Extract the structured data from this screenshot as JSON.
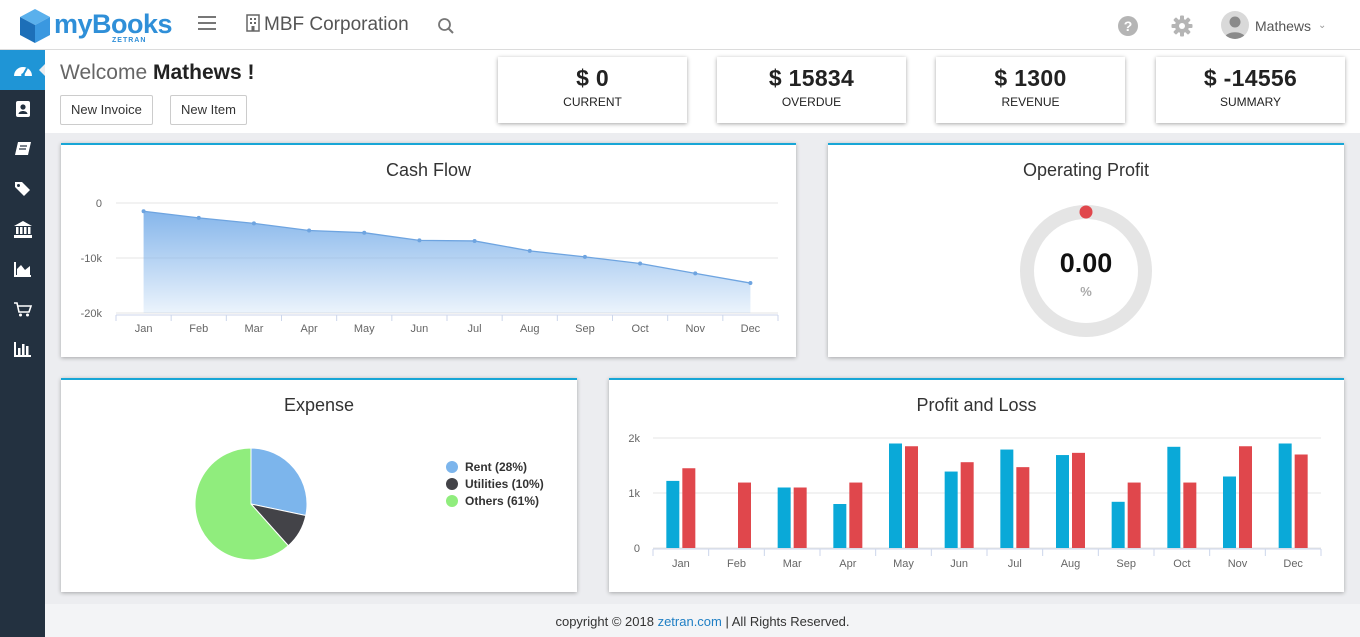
{
  "header": {
    "logo_text": "myBooks",
    "logo_sub": "ZETRAN",
    "company": "MBF Corporation",
    "user_name": "Mathews"
  },
  "sidebar": {
    "items": [
      {
        "icon": "dashboard-icon",
        "active": true
      },
      {
        "icon": "contacts-icon",
        "active": false
      },
      {
        "icon": "book-icon",
        "active": false
      },
      {
        "icon": "tags-icon",
        "active": false
      },
      {
        "icon": "bank-icon",
        "active": false
      },
      {
        "icon": "area-chart-icon",
        "active": false
      },
      {
        "icon": "cart-icon",
        "active": false
      },
      {
        "icon": "bar-chart-icon",
        "active": false
      }
    ]
  },
  "welcome": {
    "prefix": "Welcome ",
    "name": "Mathews !",
    "new_invoice": "New Invoice",
    "new_item": "New Item"
  },
  "stats": [
    {
      "value": "$ 0",
      "label": "CURRENT"
    },
    {
      "value": "$ 15834",
      "label": "OVERDUE"
    },
    {
      "value": "$ 1300",
      "label": "REVENUE"
    },
    {
      "value": "$ -14556",
      "label": "SUMMARY"
    }
  ],
  "colors": {
    "accent": "#1f95d6",
    "sidebar": "#233140",
    "panel_border": "#18a6d6",
    "area_fill": "#7fb2ea",
    "series_blue": "#0aa9d8",
    "series_red": "#e0474c",
    "gauge_dot": "#e0474c"
  },
  "chart_data": [
    {
      "type": "area",
      "title": "Cash Flow",
      "categories": [
        "Jan",
        "Feb",
        "Mar",
        "Apr",
        "May",
        "Jun",
        "Jul",
        "Aug",
        "Sep",
        "Oct",
        "Nov",
        "Dec"
      ],
      "values": [
        -1500,
        -2700,
        -3700,
        -5000,
        -5400,
        -6800,
        -6900,
        -8700,
        -9800,
        -11000,
        -12800,
        -14556
      ],
      "y_ticks": [
        "0",
        "-10k",
        "-20k"
      ],
      "ylim": [
        -20000,
        0
      ],
      "grid": true
    },
    {
      "type": "pie",
      "title": "Expense",
      "slices": [
        {
          "label": "Rent (28%)",
          "value": 28,
          "color": "#7cb5ec"
        },
        {
          "label": "Utilities (10%)",
          "value": 10,
          "color": "#434348"
        },
        {
          "label": "Others (61%)",
          "value": 61,
          "color": "#90ed7d"
        }
      ],
      "legend": "right"
    },
    {
      "type": "bar",
      "title": "Profit and Loss",
      "categories": [
        "Jan",
        "Feb",
        "Mar",
        "Apr",
        "May",
        "Jun",
        "Jul",
        "Aug",
        "Sep",
        "Oct",
        "Nov",
        "Dec"
      ],
      "series": [
        {
          "values": [
            1220,
            0,
            1100,
            800,
            1900,
            1390,
            1790,
            1690,
            840,
            1840,
            1300,
            1900
          ],
          "color": "#0aa9d8"
        },
        {
          "values": [
            1450,
            1190,
            1100,
            1190,
            1850,
            1560,
            1470,
            1730,
            1190,
            1190,
            1850,
            1700
          ],
          "color": "#e0474c"
        }
      ],
      "y_ticks": [
        "2k",
        "1k",
        "0"
      ],
      "ylim": [
        0,
        2000
      ],
      "grid": true
    }
  ],
  "gauge": {
    "title": "Operating Profit",
    "value": "0.00",
    "unit": "%",
    "fraction": 0
  },
  "footer": {
    "text_before": "copyright © 2018 ",
    "link": "zetran.com",
    "text_after": " | All Rights Reserved."
  }
}
